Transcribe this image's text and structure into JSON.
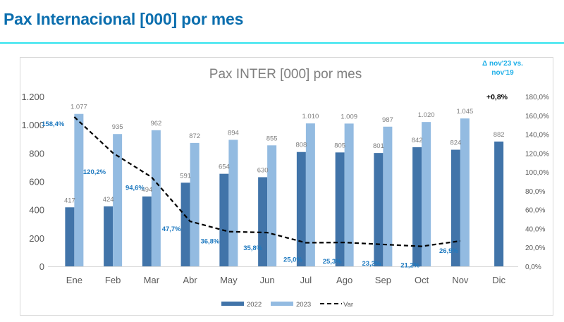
{
  "header": {
    "title": "Pax Internacional [000] por mes"
  },
  "annotation": {
    "title_line1": "Δ nov'23 vs.",
    "title_line2": "nov'19",
    "value": "+0,8%"
  },
  "colors": {
    "title": "#0b6eae",
    "rule": "#2fe3ee",
    "series_2022": "#4174a9",
    "series_2023": "#93bbe1",
    "var_line": "#000000",
    "var_label": "#1f7ac0",
    "annotation_title": "#20b0e8"
  },
  "chart_data": {
    "type": "bar",
    "title": "Pax INTER [000]  por mes",
    "xlabel": "",
    "ylabel": "",
    "categories": [
      "Ene",
      "Feb",
      "Mar",
      "Abr",
      "May",
      "Jun",
      "Jul",
      "Ago",
      "Sep",
      "Oct",
      "Nov",
      "Dic"
    ],
    "series": [
      {
        "name": "2022",
        "type": "bar",
        "axis": "left",
        "values": [
          417,
          424,
          494,
          591,
          654,
          630,
          808,
          805,
          801,
          842,
          824,
          882
        ],
        "labels": [
          "417",
          "424",
          "494",
          "591",
          "654",
          "630",
          "808",
          "805",
          "801",
          "842",
          "824",
          "882"
        ]
      },
      {
        "name": "2023",
        "type": "bar",
        "axis": "left",
        "values": [
          1077,
          935,
          962,
          872,
          894,
          855,
          1010,
          1009,
          987,
          1020,
          1045,
          null
        ],
        "labels": [
          "1.077",
          "935",
          "962",
          "872",
          "894",
          "855",
          "1.010",
          "1.009",
          "987",
          "1.020",
          "1.045",
          null
        ]
      },
      {
        "name": "Var",
        "type": "line",
        "style": "dashed",
        "axis": "right",
        "values": [
          158.4,
          120.2,
          94.6,
          47.7,
          36.8,
          35.8,
          25.0,
          25.3,
          23.2,
          21.2,
          26.9,
          null
        ],
        "labels": [
          "158,4%",
          "120,2%",
          "94,6%",
          "47,7%",
          "36,8%",
          "35,8%",
          "25,0%",
          "25,3%",
          "23,2%",
          "21,2%",
          "26,9%",
          null
        ]
      }
    ],
    "y_left": {
      "range": [
        0,
        1200
      ],
      "ticks": [
        0,
        200,
        400,
        600,
        800,
        1000,
        1200
      ],
      "tick_labels": [
        "0",
        "200",
        "400",
        "600",
        "800",
        "1.000",
        "1.200"
      ]
    },
    "y_right": {
      "range": [
        0,
        180
      ],
      "ticks": [
        0,
        20,
        40,
        60,
        80,
        100,
        120,
        140,
        160,
        180
      ],
      "tick_labels": [
        "0,0%",
        "20,0%",
        "40,0%",
        "60,0%",
        "80,0%",
        "100,0%",
        "120,0%",
        "140,0%",
        "160,0%",
        "180,0%"
      ]
    },
    "grid": false,
    "legend": {
      "placement": "bottom",
      "entries": [
        "2022",
        "2023",
        "Var"
      ]
    }
  }
}
